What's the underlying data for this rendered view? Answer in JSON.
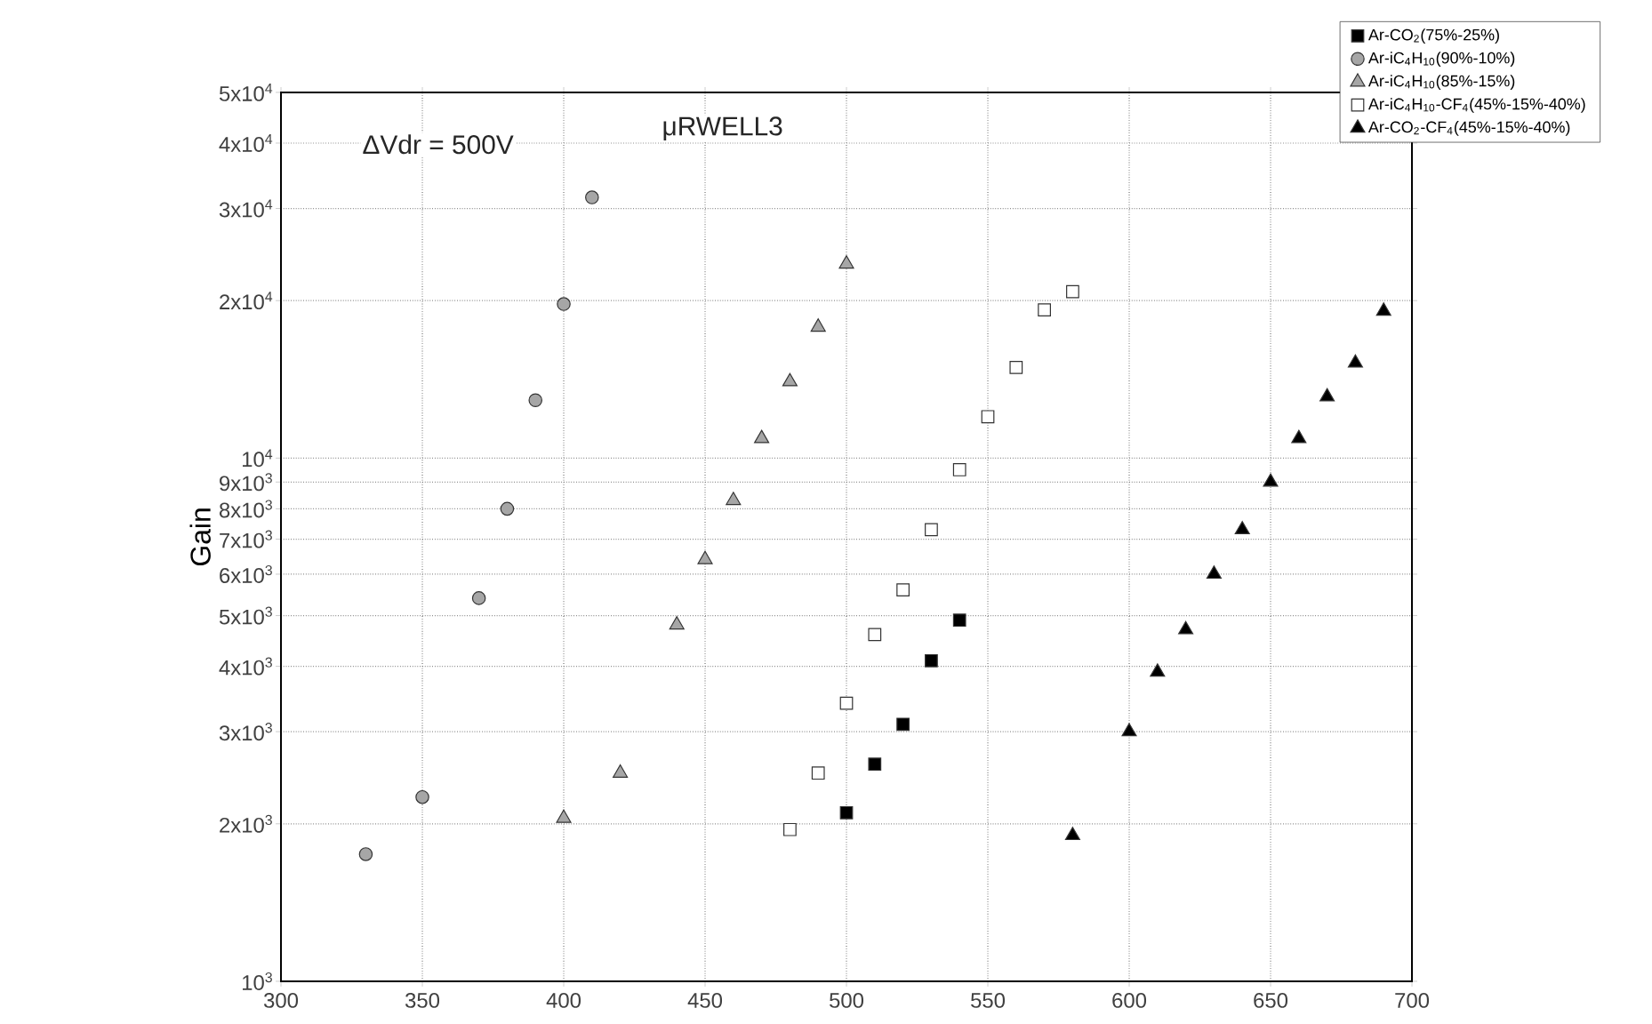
{
  "chart_data": {
    "type": "scatter",
    "ylabel": "Gain",
    "log": "y",
    "grid": true,
    "legend": "top right",
    "annotations": [
      "ΔVdr = 500V",
      "μRWELL3"
    ],
    "xlim": [
      300,
      700
    ],
    "xticks": [
      300,
      350,
      400,
      450,
      500,
      550,
      600,
      650,
      700
    ],
    "ylim": [
      1000,
      50000
    ],
    "yticks": [
      {
        "value": 1000,
        "label": "10$^{3}$"
      },
      {
        "value": 2000,
        "label": "2x10$^{3}$"
      },
      {
        "value": 3000,
        "label": "3x10$^{3}$"
      },
      {
        "value": 4000,
        "label": "4x10$^{3}$"
      },
      {
        "value": 5000,
        "label": "5x10$^{3}$"
      },
      {
        "value": 6000,
        "label": "6x10$^{3}$"
      },
      {
        "value": 7000,
        "label": "7x10$^{3}$"
      },
      {
        "value": 8000,
        "label": "8x10$^{3}$"
      },
      {
        "value": 9000,
        "label": "9x10$^{3}$"
      },
      {
        "value": 10000,
        "label": "10$^{4}$"
      },
      {
        "value": 20000,
        "label": "2x10$^{4}$"
      },
      {
        "value": 30000,
        "label": "3x10$^{4}$"
      },
      {
        "value": 40000,
        "label": "4x10$^{4}$"
      },
      {
        "value": 50000,
        "label": "5x10$^{4}$"
      }
    ],
    "series": [
      {
        "name": "Ar-CO$_{2}$(75%-25%)",
        "color": "#000000",
        "marker": "square",
        "x": [
          500,
          510,
          520,
          530,
          540
        ],
        "values": [
          2100,
          2600,
          3100,
          4100,
          4900
        ]
      },
      {
        "name": "Ar-iC$_{4}$H$_{10}$(90%-10%)",
        "color": "#a6a6a6",
        "marker": "circle",
        "x": [
          330,
          350,
          370,
          380,
          390,
          400,
          410
        ],
        "values": [
          1750,
          2250,
          5400,
          8000,
          12900,
          19700,
          31500
        ]
      },
      {
        "name": "Ar-iC$_{4}$H$_{10}$(85%-15%)",
        "color": "#a6a6a6",
        "marker": "triangle",
        "x": [
          400,
          420,
          440,
          450,
          460,
          470,
          480,
          490,
          500
        ],
        "values": [
          2050,
          2500,
          4800,
          6400,
          8300,
          10900,
          14000,
          17800,
          23500
        ]
      },
      {
        "name": "Ar-iC$_{4}$H$_{10}$-CF$_{4}$(45%-15%-40%)",
        "color": "#ffffff",
        "marker": "square",
        "x": [
          480,
          490,
          500,
          510,
          520,
          530,
          540,
          550,
          560,
          570,
          580
        ],
        "values": [
          1950,
          2500,
          3400,
          4600,
          5600,
          7300,
          9500,
          12000,
          14900,
          19200,
          20800
        ]
      },
      {
        "name": "Ar-CO$_{2}$-CF$_{4}$(45%-15%-40%)",
        "color": "#000000",
        "marker": "triangle",
        "x": [
          580,
          600,
          610,
          620,
          630,
          640,
          650,
          660,
          670,
          680,
          690
        ],
        "values": [
          1900,
          3000,
          3900,
          4700,
          6000,
          7300,
          9000,
          10900,
          13100,
          15200,
          19100
        ]
      }
    ]
  }
}
